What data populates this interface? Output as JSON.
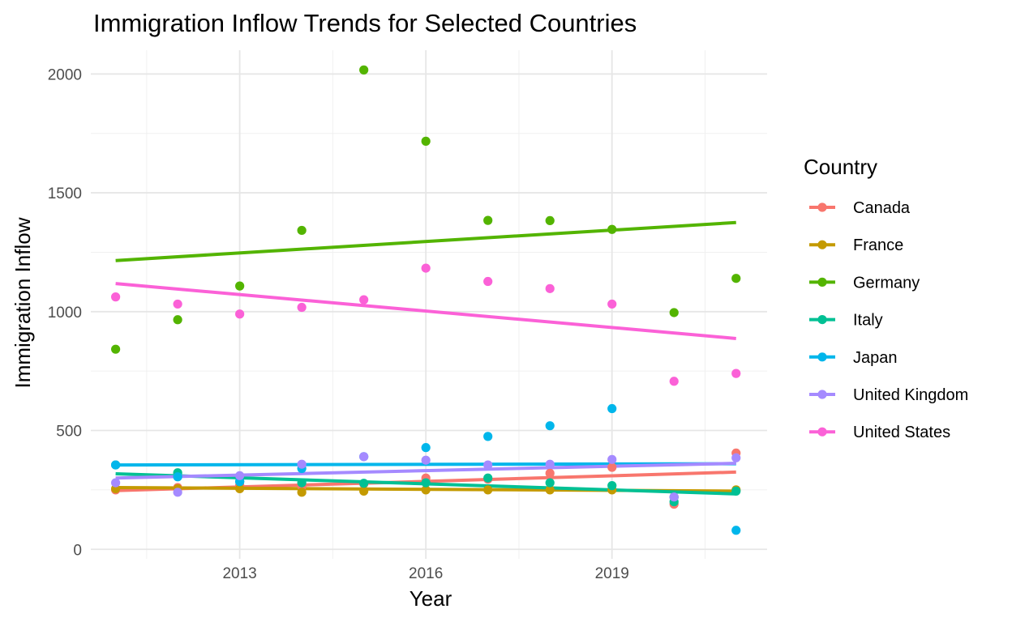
{
  "chart_data": {
    "type": "scatter",
    "title": "Immigration Inflow Trends for Selected Countries",
    "xlabel": "Year",
    "ylabel": "Immigration Inflow",
    "xlim": [
      2010.6,
      2021.5
    ],
    "ylim": [
      -40,
      2100
    ],
    "x_ticks": [
      2013,
      2016,
      2019
    ],
    "y_ticks": [
      0,
      500,
      1000,
      1500,
      2000
    ],
    "grid": true,
    "legend": {
      "title": "Country",
      "position": "right"
    },
    "trend_lines": "linear fit per series",
    "x": [
      2011,
      2012,
      2013,
      2014,
      2015,
      2016,
      2017,
      2018,
      2019,
      2020,
      2021
    ],
    "series": [
      {
        "name": "Canada",
        "color": "#F8766D",
        "values": [
          250,
          260,
          270,
          265,
          275,
          300,
          295,
          320,
          345,
          190,
          405
        ],
        "trend": [
          247,
          325
        ]
      },
      {
        "name": "France",
        "color": "#C49A00",
        "values": [
          255,
          255,
          255,
          240,
          245,
          250,
          250,
          250,
          250,
          220,
          250
        ],
        "trend": [
          260,
          245
        ]
      },
      {
        "name": "Germany",
        "color": "#53B400",
        "values": [
          842,
          966,
          1108,
          1342,
          2017,
          1717,
          1384,
          1383,
          1346,
          996,
          1140
        ],
        "trend": [
          1215,
          1375
        ]
      },
      {
        "name": "Italy",
        "color": "#00C094",
        "values": [
          355,
          322,
          285,
          280,
          278,
          280,
          300,
          280,
          268,
          200,
          245
        ],
        "trend": [
          318,
          233
        ]
      },
      {
        "name": "Japan",
        "color": "#00B6EB",
        "values": [
          355,
          305,
          285,
          340,
          390,
          428,
          475,
          520,
          592,
          220,
          80
        ],
        "trend": [
          355,
          360
        ]
      },
      {
        "name": "United Kingdom",
        "color": "#A58AFF",
        "values": [
          280,
          240,
          310,
          358,
          390,
          375,
          355,
          358,
          378,
          220,
          385
        ],
        "trend": [
          300,
          362
        ]
      },
      {
        "name": "United States",
        "color": "#FB61D7",
        "values": [
          1062,
          1032,
          990,
          1018,
          1050,
          1183,
          1127,
          1097,
          1032,
          707,
          740
        ],
        "trend": [
          1118,
          887
        ]
      }
    ]
  }
}
